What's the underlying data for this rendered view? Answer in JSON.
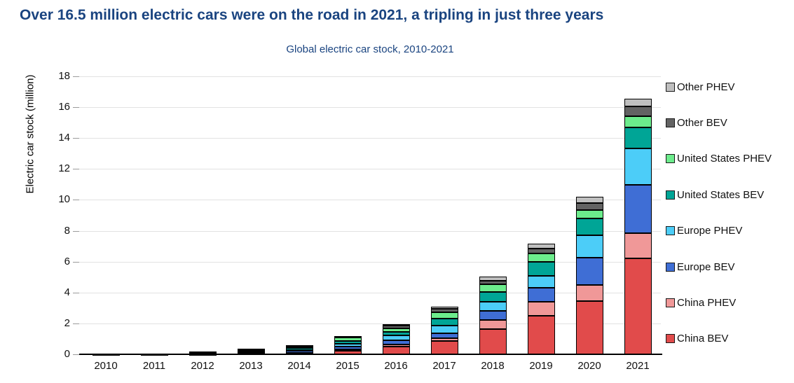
{
  "chart_data": {
    "type": "bar",
    "stacked": true,
    "title": "Over 16.5 million electric cars were on the road in 2021, a tripling in just three years",
    "subtitle": "Global electric car stock, 2010-2021",
    "xlabel": "",
    "ylabel": "Electric car stock (million)",
    "ylim": [
      0,
      18
    ],
    "ytick_step": 2,
    "grid": "horizontal",
    "legend_position": "right",
    "categories": [
      "2010",
      "2011",
      "2012",
      "2013",
      "2014",
      "2015",
      "2016",
      "2017",
      "2018",
      "2019",
      "2020",
      "2021"
    ],
    "series": [
      {
        "name": "China BEV",
        "color": "#e14b4b",
        "values": [
          0.01,
          0.01,
          0.02,
          0.03,
          0.08,
          0.23,
          0.5,
          0.85,
          1.65,
          2.5,
          3.45,
          6.2
        ]
      },
      {
        "name": "China PHEV",
        "color": "#f09898",
        "values": [
          0.0,
          0.0,
          0.0,
          0.0,
          0.03,
          0.09,
          0.15,
          0.2,
          0.55,
          0.9,
          1.05,
          1.65
        ]
      },
      {
        "name": "Europe BEV",
        "color": "#3f6ed5",
        "values": [
          0.0,
          0.01,
          0.03,
          0.06,
          0.1,
          0.19,
          0.27,
          0.3,
          0.6,
          0.9,
          1.75,
          3.1
        ]
      },
      {
        "name": "Europe PHEV",
        "color": "#4ccdf8",
        "values": [
          0.0,
          0.0,
          0.01,
          0.03,
          0.05,
          0.16,
          0.3,
          0.5,
          0.6,
          0.8,
          1.45,
          2.4
        ]
      },
      {
        "name": "United States BEV",
        "color": "#00a596",
        "values": [
          0.0,
          0.01,
          0.03,
          0.08,
          0.13,
          0.21,
          0.25,
          0.45,
          0.65,
          0.9,
          1.1,
          1.35
        ]
      },
      {
        "name": "United States PHEV",
        "color": "#6cec8c",
        "values": [
          0.0,
          0.01,
          0.04,
          0.09,
          0.13,
          0.19,
          0.2,
          0.4,
          0.5,
          0.55,
          0.55,
          0.7
        ]
      },
      {
        "name": "Other BEV",
        "color": "#636363",
        "values": [
          0.01,
          0.02,
          0.05,
          0.08,
          0.07,
          0.1,
          0.18,
          0.25,
          0.2,
          0.3,
          0.45,
          0.65
        ]
      },
      {
        "name": "Other PHEV",
        "color": "#bfbfbf",
        "values": [
          0.0,
          0.0,
          0.0,
          0.01,
          0.02,
          0.03,
          0.12,
          0.15,
          0.3,
          0.3,
          0.4,
          0.5
        ]
      }
    ],
    "totals_by_year": [
      0.02,
      0.06,
      0.18,
      0.38,
      0.61,
      1.2,
      1.97,
      3.1,
      5.05,
      7.15,
      10.2,
      16.55
    ],
    "colors": {
      "headline_text": "#1a4480",
      "subtitle_text": "#1a4480",
      "axis_text": "#111111",
      "gridline": "#e2e2e2",
      "axis_line": "#000000",
      "segment_border": "#000000"
    }
  }
}
